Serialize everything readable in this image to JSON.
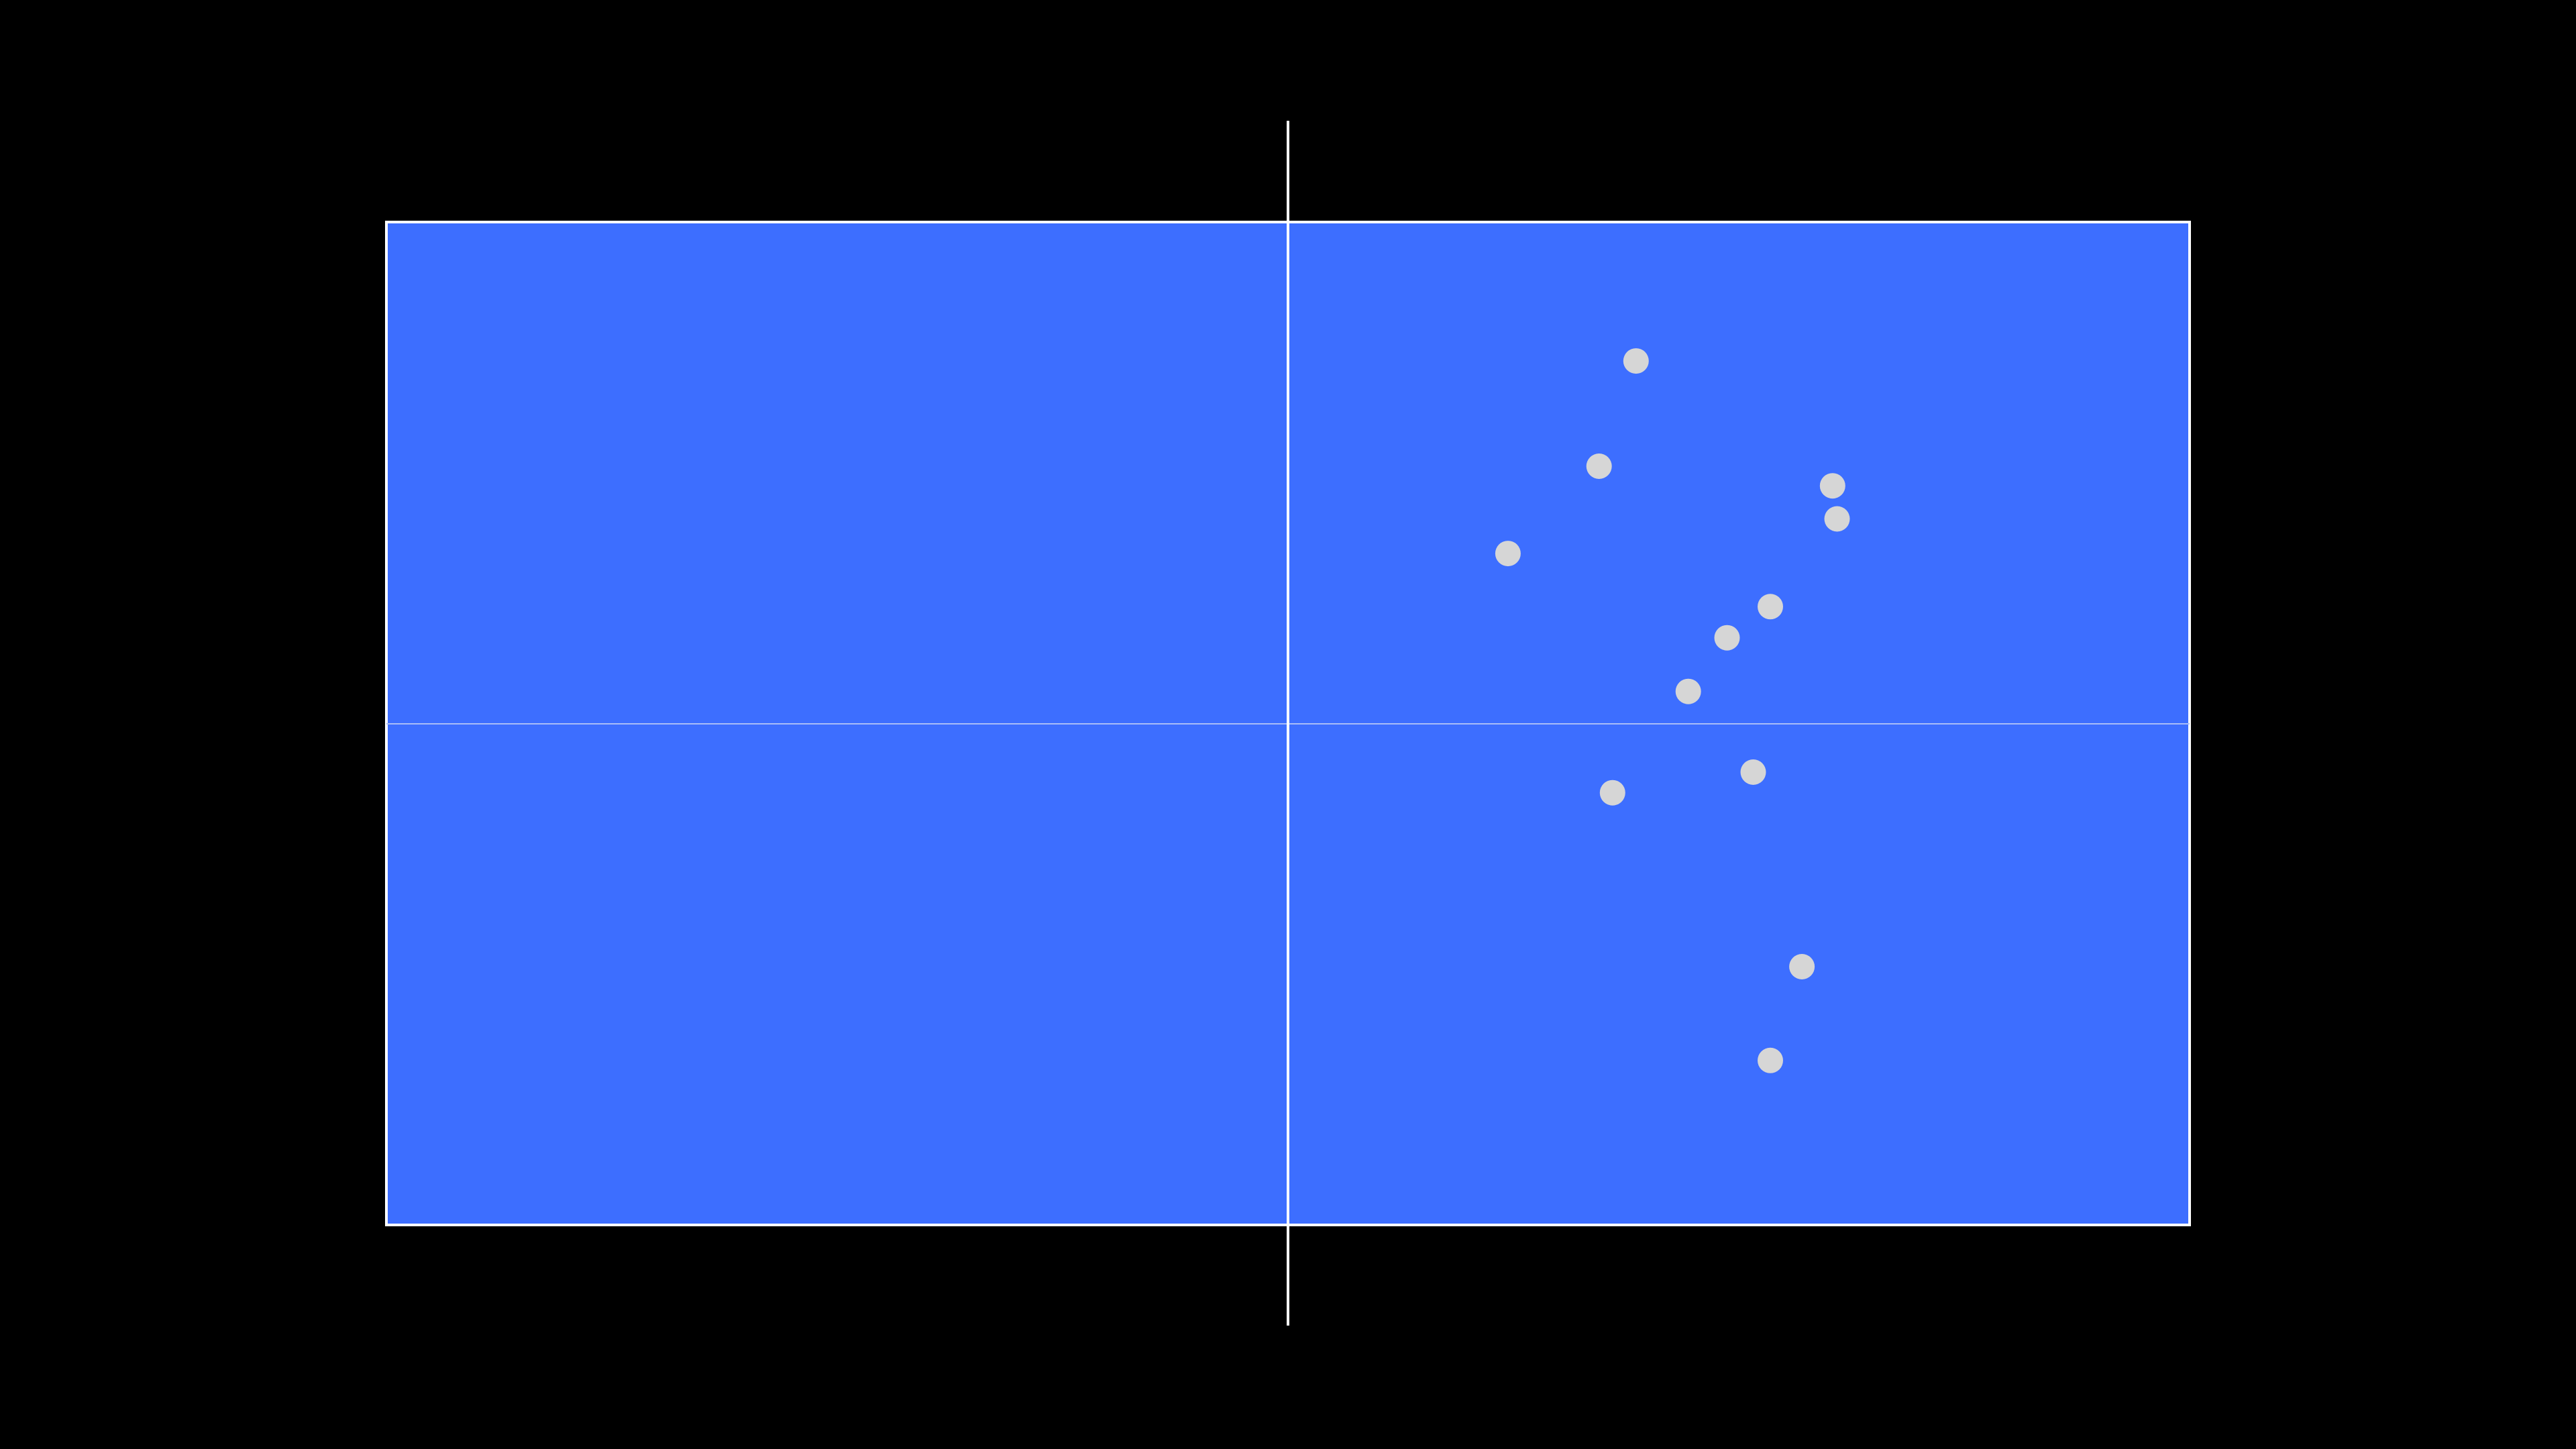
{
  "colors": {
    "background": "#000000",
    "field": "#3d6eff",
    "field_border": "#ffffff",
    "center_line": "#ffffff",
    "midfield_line": "#a9bdf7",
    "marker": "#d6d6d6"
  },
  "field": {
    "x_range": [
      -1,
      1
    ],
    "y_range": [
      -1,
      1
    ]
  },
  "markers": [
    {
      "x": 0.386,
      "y": 0.723
    },
    {
      "x": 0.345,
      "y": 0.513
    },
    {
      "x": 0.604,
      "y": 0.474
    },
    {
      "x": 0.609,
      "y": 0.408
    },
    {
      "x": 0.244,
      "y": 0.339
    },
    {
      "x": 0.535,
      "y": 0.233
    },
    {
      "x": 0.487,
      "y": 0.171
    },
    {
      "x": 0.444,
      "y": 0.064
    },
    {
      "x": 0.516,
      "y": -0.097
    },
    {
      "x": 0.36,
      "y": -0.138
    },
    {
      "x": 0.57,
      "y": -0.485
    },
    {
      "x": 0.535,
      "y": -0.672
    }
  ]
}
